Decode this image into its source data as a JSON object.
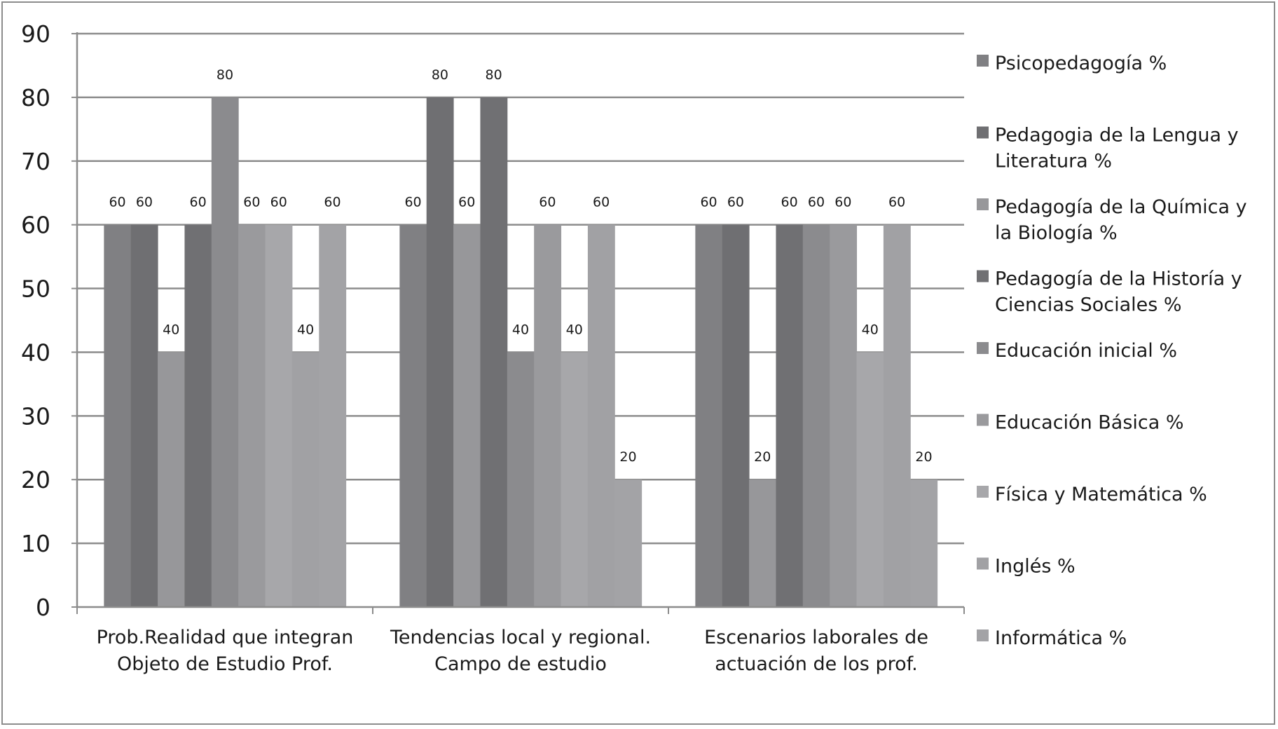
{
  "chart_data": {
    "type": "bar",
    "categories": [
      [
        "Prob.Realidad que integran",
        "Objeto de Estudio Prof."
      ],
      [
        "Tendencias local y regional.",
        "Campo de estudio"
      ],
      [
        "Escenarios laborales de",
        "actuación de los prof."
      ]
    ],
    "ylim": [
      0,
      90
    ],
    "yticks": [
      0,
      10,
      20,
      30,
      40,
      50,
      60,
      70,
      80,
      90
    ],
    "grid": true,
    "legend_position": "right",
    "series": [
      {
        "name": "Psicopedagogía %",
        "values": [
          60,
          60,
          60
        ],
        "color": "#808083"
      },
      {
        "name": "Pedagogia de la Lengua y Literatura %",
        "values": [
          60,
          80,
          60
        ],
        "color": "#6f6f72"
      },
      {
        "name": "Pedagogía de la Química y la Biología %",
        "values": [
          40,
          60,
          20
        ],
        "color": "#97979a"
      },
      {
        "name": "Pedagogía de la Historía y Ciencias Sociales %",
        "values": [
          60,
          80,
          60
        ],
        "color": "#707073"
      },
      {
        "name": "Educación inicial  %",
        "values": [
          80,
          40,
          60
        ],
        "color": "#8b8b8e"
      },
      {
        "name": "Educación Básica %",
        "values": [
          60,
          60,
          60
        ],
        "color": "#9a9a9d"
      },
      {
        "name": "Física y Matemática %",
        "values": [
          60,
          40,
          40
        ],
        "color": "#a7a7aa"
      },
      {
        "name": "Inglés  %",
        "values": [
          40,
          60,
          60
        ],
        "color": "#a1a1a4"
      },
      {
        "name": "Informática %",
        "values": [
          60,
          20,
          20
        ],
        "color": "#a3a3a6"
      }
    ]
  }
}
